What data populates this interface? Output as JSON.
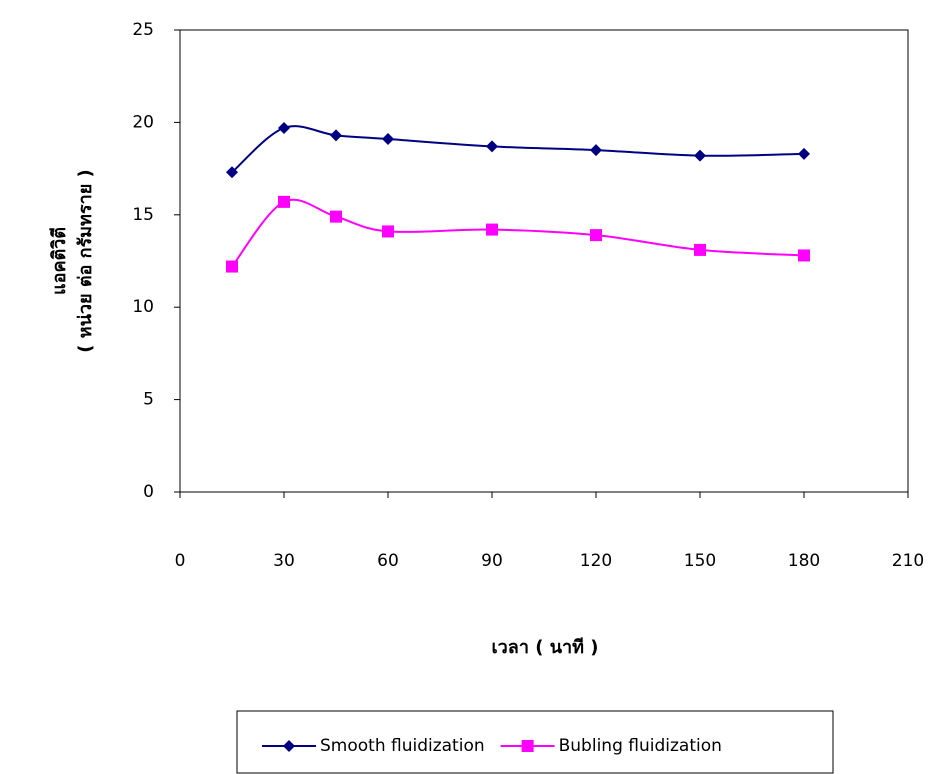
{
  "chart_data": {
    "type": "line",
    "xlabel": "เวลา ( นาที )",
    "ylabel": [
      "แอคติวิตี",
      "( หน่วย ต่อ กรัมทราย )"
    ],
    "x": [
      15,
      30,
      45,
      60,
      90,
      120,
      150,
      180
    ],
    "series": [
      {
        "name": "Smooth fluidization",
        "color": "#000080",
        "marker": "diamond",
        "values": [
          17.3,
          19.7,
          19.3,
          19.1,
          18.7,
          18.5,
          18.2,
          18.3
        ]
      },
      {
        "name": "Bubling fluidization",
        "color": "#ff00ff",
        "marker": "square",
        "values": [
          12.2,
          15.7,
          14.9,
          14.1,
          14.2,
          13.9,
          13.1,
          12.8
        ]
      }
    ],
    "xlim": [
      0,
      210
    ],
    "xticks": [
      0,
      30,
      60,
      90,
      120,
      150,
      180,
      210
    ],
    "ylim": [
      0,
      25
    ],
    "yticks": [
      0,
      5,
      10,
      15,
      20,
      25
    ],
    "smooth": true,
    "legend": "bottom"
  }
}
